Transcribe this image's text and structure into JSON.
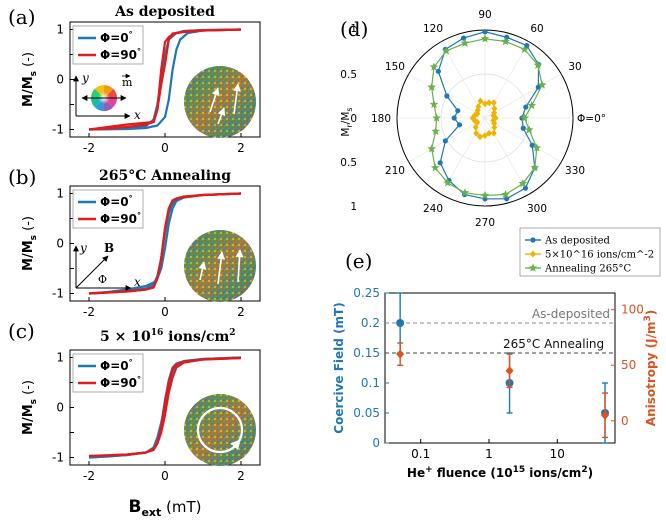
{
  "panels": {
    "a": {
      "letter": "(a)",
      "title": "As deposited"
    },
    "b": {
      "letter": "(b)",
      "title": "265°C Annealing"
    },
    "c": {
      "letter": "(c)",
      "title": "5 × 10",
      "title_sup": "16",
      "title_tail": " ions/cm",
      "title_sup2": "2"
    },
    "d": {
      "letter": "(d)"
    },
    "e": {
      "letter": "(e)"
    }
  },
  "hyst_common": {
    "ylabel_main": "M/M",
    "ylabel_sub": "s",
    "ylabel_tail": " (-)",
    "xlabel_main": "B",
    "xlabel_sub": "ext",
    "xlabel_tail": " (mT)",
    "legend": [
      "Φ=0",
      "Φ=90"
    ],
    "legend_degree": "°",
    "colors": {
      "phi0": "#1f77b4",
      "phi90": "#e31a1c"
    },
    "inset_a": {
      "y": "y",
      "x": "x",
      "m": "m"
    },
    "inset_b": {
      "y": "y",
      "x": "x",
      "B": "B",
      "phi": "Φ"
    }
  },
  "chart_data": [
    {
      "id": "a",
      "type": "line",
      "title": "As deposited",
      "xlabel": "B_ext (mT)",
      "ylabel": "M/M_s (-)",
      "xlim": [
        -2.5,
        2.5
      ],
      "ylim": [
        -1.15,
        1.15
      ],
      "xticks": [
        -2,
        0,
        2
      ],
      "yticks": [
        -1,
        -0.5,
        0,
        0.5,
        1
      ],
      "series": [
        {
          "name": "Φ=0°",
          "up": {
            "x": [
              -2,
              -1,
              -0.5,
              -0.2,
              0,
              0.1,
              0.2,
              0.3,
              0.4,
              0.6,
              1,
              2
            ],
            "y": [
              -1,
              -0.99,
              -0.97,
              -0.92,
              -0.75,
              -0.4,
              0.2,
              0.6,
              0.8,
              0.93,
              0.98,
              1
            ]
          },
          "down": {
            "x": [
              2,
              1,
              0.5,
              0.3,
              0.1,
              0,
              -0.1,
              -0.2,
              -0.3,
              -0.5,
              -1,
              -2
            ],
            "y": [
              1,
              0.99,
              0.97,
              0.93,
              0.8,
              0.5,
              0,
              -0.5,
              -0.8,
              -0.93,
              -0.98,
              -1
            ]
          }
        },
        {
          "name": "Φ=90°",
          "up": {
            "x": [
              -2,
              -1.5,
              -1,
              -0.5,
              -0.3,
              -0.2,
              -0.1,
              0,
              0.1,
              0.2,
              0.5,
              1,
              2
            ],
            "y": [
              -1,
              -0.98,
              -0.95,
              -0.9,
              -0.85,
              -0.6,
              -0.1,
              0.3,
              0.8,
              0.92,
              0.95,
              0.98,
              1
            ]
          },
          "down": {
            "x": [
              2,
              1,
              0.5,
              0.3,
              0.2,
              0.1,
              0,
              -0.1,
              -0.2,
              -0.3,
              -1,
              -1.5,
              -2
            ],
            "y": [
              1,
              0.98,
              0.96,
              0.93,
              0.9,
              0.85,
              0.75,
              0.2,
              -0.6,
              -0.85,
              -0.9,
              -0.95,
              -1
            ]
          }
        }
      ]
    },
    {
      "id": "b",
      "type": "line",
      "title": "265°C Annealing",
      "xlabel": "B_ext (mT)",
      "ylabel": "M/M_s (-)",
      "xlim": [
        -2.5,
        2.5
      ],
      "ylim": [
        -1.15,
        1.15
      ],
      "xticks": [
        -2,
        0,
        2
      ],
      "yticks": [
        -1,
        -0.5,
        0,
        0.5,
        1
      ],
      "series": [
        {
          "name": "Φ=0°",
          "up": {
            "x": [
              -2,
              -1.5,
              -1,
              -0.5,
              -0.3,
              -0.2,
              -0.1,
              0,
              0.1,
              0.2,
              0.3,
              0.5,
              1,
              2
            ],
            "y": [
              -1,
              -0.97,
              -0.92,
              -0.85,
              -0.78,
              -0.7,
              -0.5,
              -0.1,
              0.4,
              0.7,
              0.85,
              0.92,
              0.97,
              1
            ]
          },
          "down": {
            "x": [
              2,
              1,
              0.5,
              0.3,
              0.2,
              0.1,
              0,
              -0.1,
              -0.2,
              -0.3,
              -0.5,
              -1,
              -2
            ],
            "y": [
              1,
              0.97,
              0.93,
              0.88,
              0.8,
              0.6,
              0.2,
              -0.3,
              -0.65,
              -0.82,
              -0.9,
              -0.95,
              -1
            ]
          }
        },
        {
          "name": "Φ=90°",
          "up": {
            "x": [
              -2,
              -1,
              -0.5,
              -0.3,
              -0.2,
              -0.1,
              0,
              0.1,
              0.2,
              0.3,
              0.5,
              1,
              2
            ],
            "y": [
              -1,
              -0.96,
              -0.92,
              -0.88,
              -0.7,
              -0.3,
              0.3,
              0.7,
              0.86,
              0.9,
              0.93,
              0.97,
              1
            ]
          },
          "down": {
            "x": [
              2,
              1,
              0.5,
              0.3,
              0.2,
              0.1,
              0,
              -0.1,
              -0.2,
              -0.3,
              -0.5,
              -1,
              -2
            ],
            "y": [
              1,
              0.97,
              0.94,
              0.9,
              0.86,
              0.7,
              0.3,
              -0.3,
              -0.7,
              -0.87,
              -0.92,
              -0.96,
              -1
            ]
          }
        }
      ]
    },
    {
      "id": "c",
      "type": "line",
      "title": "5 × 10^16 ions/cm^2",
      "xlabel": "B_ext (mT)",
      "ylabel": "M/M_s (-)",
      "xlim": [
        -2.5,
        2.5
      ],
      "ylim": [
        -1.15,
        1.15
      ],
      "xticks": [
        -2,
        0,
        2
      ],
      "yticks": [
        -1,
        -0.5,
        0,
        0.5,
        1
      ],
      "series": [
        {
          "name": "Φ=0°",
          "up": {
            "x": [
              -2,
              -1.5,
              -1,
              -0.5,
              -0.3,
              -0.2,
              -0.1,
              0,
              0.1,
              0.2,
              0.3,
              0.5,
              1,
              2
            ],
            "y": [
              -1,
              -0.98,
              -0.95,
              -0.9,
              -0.8,
              -0.6,
              -0.3,
              0.05,
              0.4,
              0.7,
              0.85,
              0.92,
              0.97,
              1
            ]
          },
          "down": {
            "x": [
              2,
              1,
              0.5,
              0.3,
              0.2,
              0.1,
              0,
              -0.1,
              -0.2,
              -0.3,
              -0.5,
              -1,
              -2
            ],
            "y": [
              1,
              0.97,
              0.93,
              0.88,
              0.8,
              0.55,
              0.15,
              -0.35,
              -0.65,
              -0.82,
              -0.9,
              -0.95,
              -1
            ]
          }
        },
        {
          "name": "Φ=90°",
          "up": {
            "x": [
              -2,
              -1.5,
              -1,
              -0.5,
              -0.3,
              -0.2,
              -0.1,
              0,
              0.1,
              0.2,
              0.3,
              0.5,
              1,
              2
            ],
            "y": [
              -0.97,
              -0.96,
              -0.94,
              -0.9,
              -0.85,
              -0.72,
              -0.5,
              -0.15,
              0.3,
              0.6,
              0.8,
              0.9,
              0.96,
              0.99
            ]
          },
          "down": {
            "x": [
              2,
              1,
              0.5,
              0.3,
              0.2,
              0.1,
              0,
              -0.1,
              -0.2,
              -0.3,
              -0.5,
              -1,
              -2
            ],
            "y": [
              0.99,
              0.96,
              0.92,
              0.86,
              0.78,
              0.5,
              0.1,
              -0.4,
              -0.7,
              -0.83,
              -0.9,
              -0.94,
              -0.97
            ]
          }
        }
      ]
    },
    {
      "id": "d",
      "type": "scatter",
      "projection": "polar",
      "ylabel": "M_r/M_s",
      "r_ticks": [
        1,
        0.5,
        0,
        0.5,
        1
      ],
      "angle_ticks": [
        90,
        60,
        30,
        0,
        330,
        300,
        270,
        240,
        210,
        180,
        150,
        120
      ],
      "angle_label_zero": "Φ=0°",
      "rlim": [
        0,
        1
      ],
      "legend": [
        {
          "name": "As deposited",
          "color": "#1f77b4",
          "marker": "circle"
        },
        {
          "name": "5×10^16 ions/cm^-2",
          "color": "#f0b400",
          "marker": "diamond"
        },
        {
          "name": "Annealing 265°C",
          "color": "#6ab04c",
          "marker": "star"
        }
      ],
      "series": [
        {
          "name": "As deposited",
          "theta": [
            0,
            15,
            30,
            45,
            60,
            75,
            90,
            105,
            120,
            135,
            150,
            165,
            180,
            195,
            210,
            225,
            240,
            255,
            270,
            285,
            300,
            315,
            330,
            345
          ],
          "r": [
            0.42,
            0.48,
            0.7,
            0.86,
            0.95,
            0.95,
            0.98,
            0.94,
            0.9,
            0.75,
            0.5,
            0.32,
            0.35,
            0.3,
            0.52,
            0.72,
            0.82,
            0.9,
            0.92,
            0.95,
            0.92,
            0.8,
            0.62,
            0.45
          ]
        },
        {
          "name": "5×10^16 ions/cm^-2",
          "theta": [
            0,
            15,
            30,
            45,
            60,
            75,
            90,
            105,
            120,
            135,
            150,
            165,
            180,
            195,
            210,
            225,
            240,
            255,
            270,
            285,
            300,
            315,
            330,
            345
          ],
          "r": [
            0.12,
            0.1,
            0.12,
            0.15,
            0.2,
            0.18,
            0.16,
            0.2,
            0.15,
            0.12,
            0.1,
            0.12,
            0.14,
            0.12,
            0.1,
            0.15,
            0.2,
            0.22,
            0.2,
            0.18,
            0.2,
            0.15,
            0.12,
            0.1
          ]
        },
        {
          "name": "Annealing 265°C",
          "theta": [
            0,
            15,
            30,
            45,
            60,
            75,
            90,
            105,
            120,
            135,
            150,
            165,
            180,
            195,
            210,
            225,
            240,
            255,
            270,
            285,
            300,
            315,
            330,
            345
          ],
          "r": [
            0.45,
            0.55,
            0.75,
            0.85,
            0.9,
            0.9,
            0.9,
            0.88,
            0.88,
            0.82,
            0.7,
            0.6,
            0.55,
            0.58,
            0.7,
            0.8,
            0.85,
            0.88,
            0.88,
            0.9,
            0.86,
            0.8,
            0.68,
            0.52
          ]
        }
      ]
    },
    {
      "id": "e",
      "type": "scatter",
      "xlabel": "He+ fluence (10^15 ions/cm^2)",
      "ylabel_left": "Coercive Field (mT)",
      "ylabel_right": "Anisotropy (J/m^3)",
      "xscale": "log",
      "xlim": [
        0.03,
        70
      ],
      "xticks": [
        0.1,
        1,
        10
      ],
      "ylim_left": [
        0,
        0.25
      ],
      "yticks_left": [
        0,
        0.05,
        0.1,
        0.15,
        0.2,
        0.25
      ],
      "ylim_right": [
        -20,
        115
      ],
      "yticks_right": [
        0,
        50,
        100
      ],
      "reference_lines": [
        {
          "label": "As-deposited",
          "y": 0.2
        },
        {
          "label": "265°C Annealing",
          "y": 0.15
        }
      ],
      "series": [
        {
          "name": "Coercive Field",
          "axis": "left",
          "color": "#1f77b4",
          "x": [
            0.05,
            2,
            50
          ],
          "y": [
            0.2,
            0.1,
            0.05
          ],
          "err": [
            0.05,
            0.05,
            0.05
          ]
        },
        {
          "name": "Anisotropy",
          "axis": "right",
          "color": "#d9541e",
          "x": [
            0.05,
            2,
            50
          ],
          "y": [
            60,
            45,
            5
          ],
          "err": [
            10,
            15,
            20
          ]
        }
      ]
    }
  ]
}
